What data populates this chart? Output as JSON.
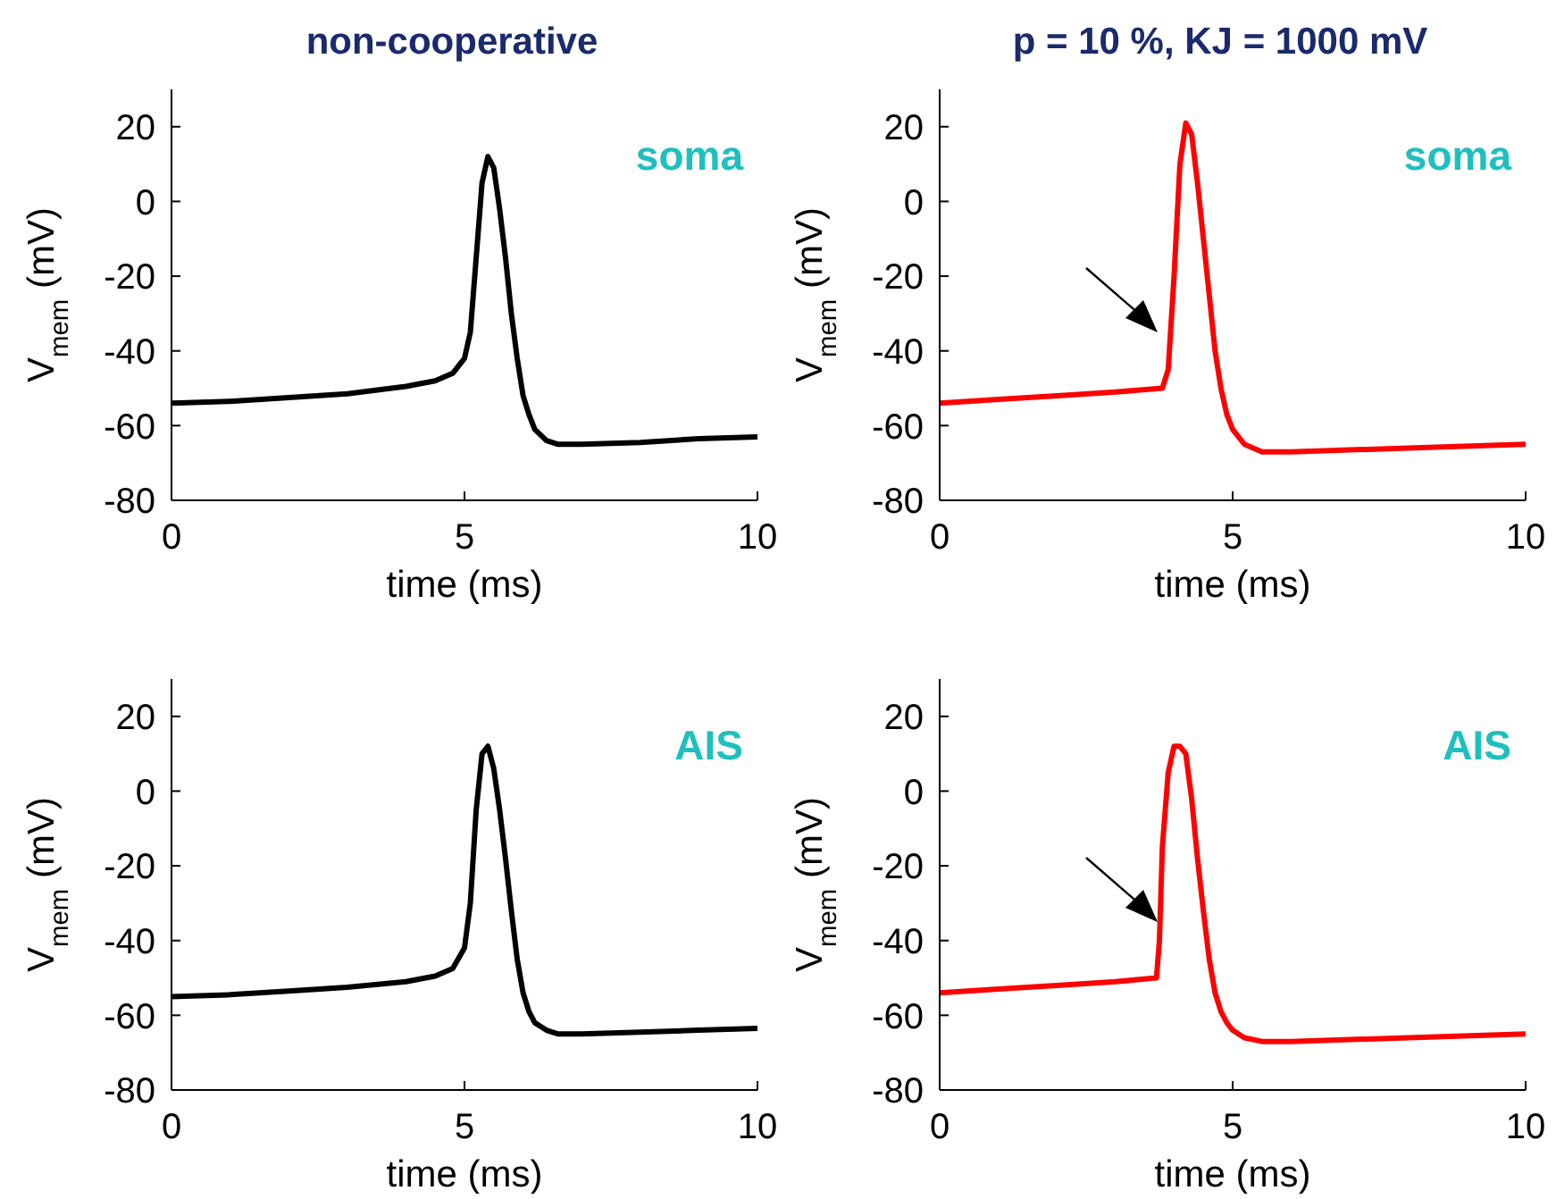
{
  "chart_data": [
    {
      "type": "line",
      "title": "non-cooperative",
      "xlabel": "time (ms)",
      "ylabel": "V$_{mem}$ (mV)",
      "annotations": [
        "soma"
      ],
      "xlim": [
        0,
        10
      ],
      "xticks": [
        0,
        5,
        10
      ],
      "ylim": [
        -80,
        30
      ],
      "yticks": [
        -80,
        -60,
        -40,
        -20,
        0,
        20
      ],
      "marker": "none",
      "line_style": "solid",
      "series": [
        {
          "color": "#000000",
          "x": [
            0,
            1,
            2,
            3,
            4,
            4.5,
            4.8,
            5.0,
            5.1,
            5.2,
            5.3,
            5.4,
            5.5,
            5.6,
            5.7,
            5.8,
            5.9,
            6.0,
            6.1,
            6.2,
            6.4,
            6.6,
            7,
            8,
            9,
            10
          ],
          "values": [
            -54,
            -53.5,
            -52.5,
            -51.5,
            -49.5,
            -48,
            -46,
            -42,
            -35,
            -15,
            5,
            12,
            9,
            -2,
            -15,
            -30,
            -42,
            -52,
            -57,
            -61,
            -64,
            -65,
            -65,
            -64.5,
            -63.5,
            -63
          ]
        }
      ]
    },
    {
      "type": "line",
      "title": "p = 10 %, KJ = 1000 mV",
      "xlabel": "time (ms)",
      "ylabel": "V$_{mem}$ (mV)",
      "annotations": [
        "soma"
      ],
      "xlim": [
        0,
        10
      ],
      "xticks": [
        0,
        5,
        10
      ],
      "ylim": [
        -80,
        30
      ],
      "yticks": [
        -80,
        -60,
        -40,
        -20,
        0,
        20
      ],
      "marker": "none",
      "line_style": "solid",
      "series": [
        {
          "color": "#ff0000",
          "x": [
            0,
            1,
            2,
            3,
            3.8,
            3.9,
            4.0,
            4.1,
            4.2,
            4.3,
            4.4,
            4.5,
            4.6,
            4.7,
            4.8,
            4.9,
            5.0,
            5.2,
            5.5,
            6,
            8,
            10
          ],
          "values": [
            -54,
            -53,
            -52,
            -51,
            -50,
            -45,
            -20,
            10,
            21,
            18,
            5,
            -10,
            -25,
            -40,
            -50,
            -57,
            -61,
            -65,
            -67,
            -67,
            -66,
            -65
          ]
        }
      ]
    },
    {
      "type": "line",
      "xlabel": "time (ms)",
      "ylabel": "V$_{mem}$ (mV)",
      "annotations": [
        "AIS"
      ],
      "xlim": [
        0,
        10
      ],
      "xticks": [
        0,
        5,
        10
      ],
      "ylim": [
        -80,
        30
      ],
      "yticks": [
        -80,
        -60,
        -40,
        -20,
        0,
        20
      ],
      "marker": "none",
      "line_style": "solid",
      "series": [
        {
          "color": "#000000",
          "x": [
            0,
            1,
            2,
            3,
            4,
            4.5,
            4.8,
            5.0,
            5.1,
            5.2,
            5.3,
            5.4,
            5.5,
            5.6,
            5.7,
            5.8,
            5.9,
            6.0,
            6.1,
            6.2,
            6.4,
            6.6,
            7,
            8,
            9,
            10
          ],
          "values": [
            -55,
            -54.5,
            -53.5,
            -52.5,
            -51,
            -49.5,
            -47.5,
            -42,
            -30,
            -5,
            10,
            12,
            6,
            -5,
            -18,
            -32,
            -45,
            -54,
            -59,
            -62,
            -64,
            -65,
            -65,
            -64.5,
            -64,
            -63.5
          ]
        }
      ]
    },
    {
      "type": "line",
      "xlabel": "time (ms)",
      "ylabel": "V$_{mem}$ (mV)",
      "annotations": [
        "AIS"
      ],
      "xlim": [
        0,
        10
      ],
      "xticks": [
        0,
        5,
        10
      ],
      "ylim": [
        -80,
        30
      ],
      "yticks": [
        -80,
        -60,
        -40,
        -20,
        0,
        20
      ],
      "marker": "none",
      "line_style": "solid",
      "series": [
        {
          "color": "#ff0000",
          "x": [
            0,
            1,
            2,
            3,
            3.7,
            3.75,
            3.8,
            3.9,
            4.0,
            4.1,
            4.2,
            4.3,
            4.4,
            4.5,
            4.6,
            4.7,
            4.8,
            4.9,
            5.0,
            5.2,
            5.5,
            6,
            8,
            10
          ],
          "values": [
            -54,
            -53,
            -52,
            -51,
            -50,
            -40,
            -15,
            5,
            12,
            12,
            10,
            -2,
            -18,
            -32,
            -45,
            -54,
            -59,
            -62,
            -64,
            -66,
            -67,
            -67,
            -66,
            -65
          ]
        }
      ]
    }
  ]
}
